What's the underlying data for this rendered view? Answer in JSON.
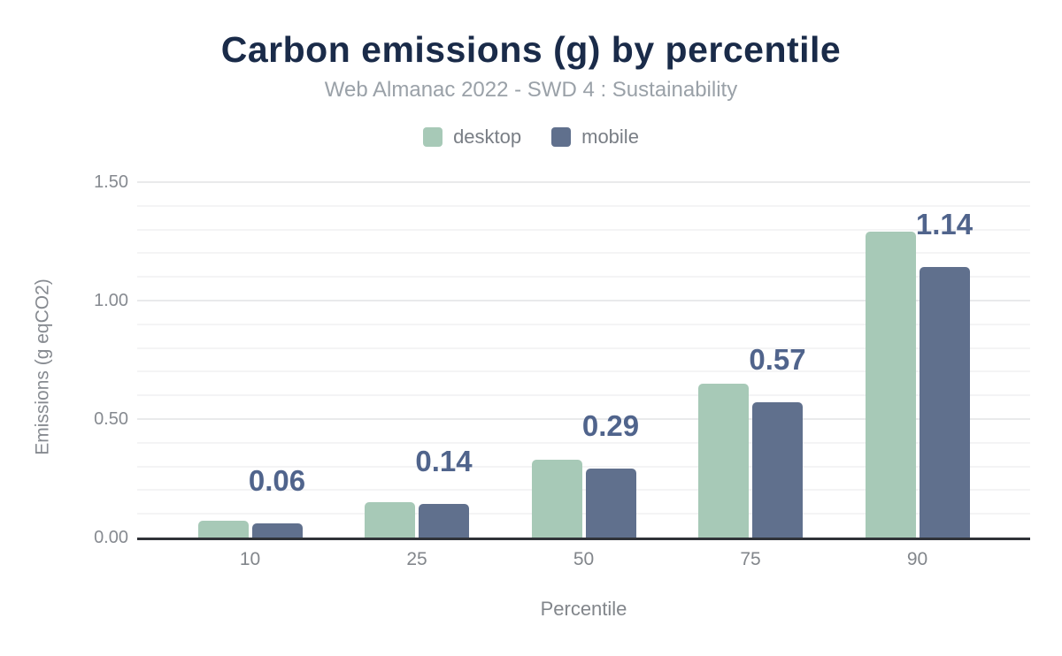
{
  "chart_data": {
    "type": "bar",
    "title": "Carbon emissions (g) by percentile",
    "subtitle": "Web Almanac 2022 - SWD 4 : Sustainability",
    "categories": [
      "10",
      "25",
      "50",
      "75",
      "90"
    ],
    "series": [
      {
        "name": "desktop",
        "color": "#a7c9b7",
        "values": [
          0.07,
          0.15,
          0.33,
          0.65,
          1.29
        ]
      },
      {
        "name": "mobile",
        "color": "#60708d",
        "values": [
          0.06,
          0.14,
          0.29,
          0.57,
          1.14
        ]
      }
    ],
    "data_labels": {
      "series": "mobile",
      "values": [
        "0.06",
        "0.14",
        "0.29",
        "0.57",
        "1.14"
      ],
      "color": "#50648c"
    },
    "xlabel": "Percentile",
    "ylabel": "Emissions (g eqCO2)",
    "yticks": [
      {
        "value": 0,
        "label": "0.00"
      },
      {
        "value": 0.5,
        "label": "0.50"
      },
      {
        "value": 1,
        "label": "1.00"
      },
      {
        "value": 1.5,
        "label": "1.50"
      }
    ],
    "ylim": [
      0,
      1.5
    ],
    "grid": {
      "on": true,
      "minor_step": 0.1,
      "major_step": 0.5
    },
    "legend_position": "top",
    "colors": {
      "title": "#1a2b49",
      "subtitle": "#9aa1a8",
      "axis_text": "#868a90",
      "axis_line": "#303338"
    }
  }
}
